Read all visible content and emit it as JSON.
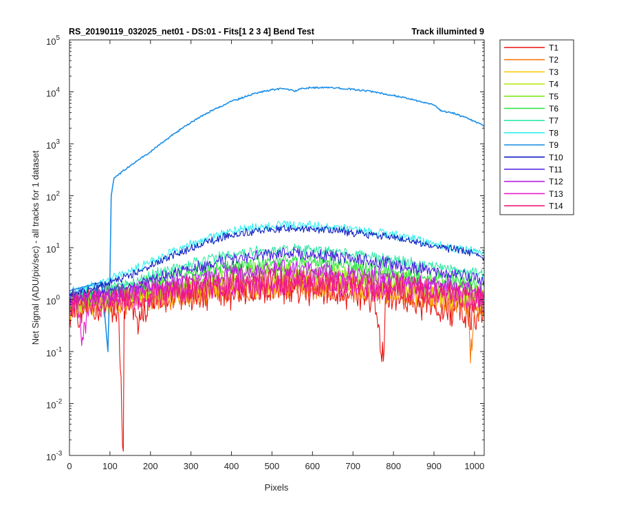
{
  "chart_data": {
    "type": "line",
    "title": "RS_20190119_032025_net01 - DS:01 - Fits[1  2  3  4]   Bend Test",
    "title_right": "Track illuminted 9",
    "xlabel": "Pixels",
    "ylabel": "Net Signal (ADU/pix/sec) - all tracks for 1 dataset",
    "xlim": [
      0,
      1024
    ],
    "ylim": [
      0.001,
      100000
    ],
    "yscale": "log",
    "grid": false,
    "legend_position": "outside-right-top",
    "xticks": [
      {
        "v": 0,
        "l": "0"
      },
      {
        "v": 100,
        "l": "100"
      },
      {
        "v": 200,
        "l": "200"
      },
      {
        "v": 300,
        "l": "300"
      },
      {
        "v": 400,
        "l": "400"
      },
      {
        "v": 500,
        "l": "500"
      },
      {
        "v": 600,
        "l": "600"
      },
      {
        "v": 700,
        "l": "700"
      },
      {
        "v": 800,
        "l": "800"
      },
      {
        "v": 900,
        "l": "900"
      },
      {
        "v": 1000,
        "l": "1000"
      }
    ],
    "yticks": [
      {
        "v": 0.001,
        "m": "10",
        "e": "-3"
      },
      {
        "v": 0.01,
        "m": "10",
        "e": "-2"
      },
      {
        "v": 0.1,
        "m": "10",
        "e": "-1"
      },
      {
        "v": 1,
        "m": "10",
        "e": "0"
      },
      {
        "v": 10,
        "m": "10",
        "e": "1"
      },
      {
        "v": 100,
        "m": "10",
        "e": "2"
      },
      {
        "v": 1000,
        "m": "10",
        "e": "3"
      },
      {
        "v": 10000,
        "m": "10",
        "e": "4"
      },
      {
        "v": 100000,
        "m": "10",
        "e": "5"
      }
    ],
    "series": [
      {
        "name": "T1",
        "color": "#e8120e",
        "x": [
          0,
          10,
          20,
          40,
          60,
          80,
          100,
          110,
          120,
          133,
          135,
          140,
          150,
          175,
          200,
          250,
          300,
          350,
          400,
          450,
          500,
          550,
          600,
          650,
          700,
          750,
          775,
          780,
          800,
          850,
          900,
          950,
          1000,
          1024
        ],
        "y": [
          0.6,
          0.8,
          0.4,
          0.9,
          0.5,
          0.7,
          0.8,
          0.5,
          0.9,
          0.0012,
          0.6,
          0.8,
          0.9,
          0.4,
          1.0,
          1.1,
          1.2,
          1.3,
          1.4,
          1.5,
          1.5,
          1.5,
          1.5,
          1.4,
          1.3,
          1.2,
          0.065,
          1.1,
          1.0,
          0.9,
          0.8,
          0.6,
          0.5,
          0.4
        ]
      },
      {
        "name": "T2",
        "color": "#f57a12",
        "x": [
          0,
          50,
          100,
          150,
          200,
          300,
          400,
          500,
          550,
          600,
          700,
          800,
          900,
          950,
          985,
          990,
          1000,
          1024
        ],
        "y": [
          0.7,
          0.8,
          0.85,
          0.95,
          1.1,
          1.3,
          1.6,
          1.8,
          1.8,
          1.8,
          1.6,
          1.4,
          1.1,
          0.9,
          0.8,
          0.06,
          0.7,
          0.6
        ]
      },
      {
        "name": "T3",
        "color": "#fbc70a",
        "x": [
          0,
          50,
          100,
          150,
          200,
          300,
          400,
          500,
          550,
          600,
          700,
          800,
          900,
          1000,
          1024
        ],
        "y": [
          0.7,
          0.8,
          0.9,
          1.0,
          1.1,
          1.4,
          1.8,
          2.0,
          2.1,
          2.0,
          1.8,
          1.5,
          1.2,
          0.9,
          0.8
        ]
      },
      {
        "name": "T4",
        "color": "#b6e81a",
        "x": [
          0,
          50,
          100,
          150,
          200,
          300,
          400,
          500,
          550,
          600,
          700,
          800,
          900,
          1000,
          1024
        ],
        "y": [
          0.8,
          0.9,
          1.0,
          1.1,
          1.3,
          1.7,
          2.2,
          2.6,
          2.7,
          2.6,
          2.3,
          1.9,
          1.5,
          1.1,
          1.0
        ]
      },
      {
        "name": "T5",
        "color": "#7fe81a",
        "x": [
          0,
          50,
          100,
          150,
          200,
          300,
          400,
          500,
          550,
          600,
          700,
          800,
          900,
          1000,
          1024
        ],
        "y": [
          0.9,
          1.0,
          1.1,
          1.3,
          1.6,
          2.2,
          3.0,
          3.5,
          3.6,
          3.5,
          3.1,
          2.5,
          1.9,
          1.4,
          1.2
        ]
      },
      {
        "name": "T6",
        "color": "#23e33c",
        "x": [
          0,
          50,
          100,
          150,
          200,
          300,
          400,
          500,
          550,
          600,
          700,
          800,
          900,
          1000,
          1024
        ],
        "y": [
          1.0,
          1.2,
          1.4,
          1.7,
          2.2,
          3.2,
          4.5,
          5.4,
          5.6,
          5.4,
          4.6,
          3.6,
          2.7,
          2.0,
          1.7
        ]
      },
      {
        "name": "T7",
        "color": "#2ee8a5",
        "x": [
          0,
          50,
          100,
          150,
          200,
          300,
          400,
          500,
          550,
          600,
          700,
          800,
          900,
          1000,
          1024
        ],
        "y": [
          1.2,
          1.4,
          1.7,
          2.1,
          2.9,
          4.8,
          7.3,
          9.1,
          9.4,
          9.0,
          7.6,
          5.8,
          4.3,
          3.2,
          2.8
        ]
      },
      {
        "name": "T8",
        "color": "#30efef",
        "x": [
          0,
          50,
          100,
          150,
          200,
          300,
          400,
          500,
          550,
          600,
          700,
          800,
          900,
          1000,
          1024
        ],
        "y": [
          1.4,
          1.8,
          2.4,
          3.5,
          5.3,
          11.5,
          20.5,
          26.5,
          27.5,
          26.5,
          23.0,
          17.0,
          12.0,
          8.5,
          7.3
        ]
      },
      {
        "name": "T9",
        "color": "#1b8fe8",
        "x": [
          0,
          20,
          40,
          60,
          80,
          95,
          100,
          103,
          110,
          130,
          150,
          200,
          250,
          300,
          350,
          400,
          450,
          500,
          530,
          545,
          555,
          570,
          600,
          650,
          700,
          750,
          800,
          850,
          900,
          920,
          940,
          960,
          980,
          1000,
          1024
        ],
        "y": [
          1.5,
          1.6,
          1.8,
          2.0,
          2.2,
          0.1,
          3.0,
          100,
          220,
          290,
          380,
          700,
          1400,
          2600,
          4300,
          6500,
          9000,
          11000,
          11500,
          11000,
          10200,
          11500,
          12000,
          12000,
          11200,
          10000,
          8500,
          7000,
          5600,
          4200,
          4000,
          3600,
          3200,
          2700,
          2200
        ]
      },
      {
        "name": "T10",
        "color": "#0d1dc0",
        "x": [
          0,
          50,
          100,
          150,
          200,
          300,
          400,
          500,
          550,
          600,
          700,
          800,
          900,
          1000,
          1024
        ],
        "y": [
          1.3,
          1.6,
          2.1,
          3.0,
          4.6,
          10.0,
          17.8,
          22.5,
          23.5,
          23.0,
          20.0,
          15.2,
          11.0,
          7.9,
          6.8
        ]
      },
      {
        "name": "T11",
        "color": "#4a1be0",
        "x": [
          0,
          50,
          100,
          150,
          200,
          300,
          400,
          500,
          550,
          600,
          700,
          800,
          900,
          1000,
          1024
        ],
        "y": [
          1.1,
          1.3,
          1.5,
          1.8,
          2.4,
          3.8,
          5.9,
          7.4,
          7.7,
          7.4,
          6.2,
          4.7,
          3.5,
          2.6,
          2.3
        ]
      },
      {
        "name": "T12",
        "color": "#b81be3",
        "x": [
          0,
          50,
          100,
          150,
          200,
          300,
          400,
          500,
          550,
          600,
          700,
          800,
          900,
          1000,
          1024
        ],
        "y": [
          0.9,
          1.0,
          1.2,
          1.4,
          1.7,
          2.4,
          3.2,
          3.8,
          3.9,
          3.8,
          3.3,
          2.6,
          2.0,
          1.6,
          1.4
        ]
      },
      {
        "name": "T13",
        "color": "#e81bd0",
        "x": [
          0,
          20,
          30,
          50,
          100,
          150,
          200,
          300,
          400,
          500,
          550,
          600,
          700,
          800,
          900,
          1000,
          1024
        ],
        "y": [
          0.8,
          0.9,
          0.13,
          0.9,
          1.0,
          1.1,
          1.3,
          1.6,
          2.0,
          2.3,
          2.4,
          2.3,
          2.0,
          1.7,
          1.4,
          1.1,
          1.0
        ]
      },
      {
        "name": "T14",
        "color": "#f0157a",
        "x": [
          0,
          50,
          100,
          150,
          200,
          300,
          400,
          500,
          550,
          600,
          700,
          800,
          900,
          1000,
          1024
        ],
        "y": [
          0.8,
          0.9,
          0.9,
          1.0,
          1.2,
          1.5,
          1.8,
          2.1,
          2.2,
          2.1,
          1.9,
          1.6,
          1.3,
          1.0,
          0.9
        ]
      }
    ]
  }
}
